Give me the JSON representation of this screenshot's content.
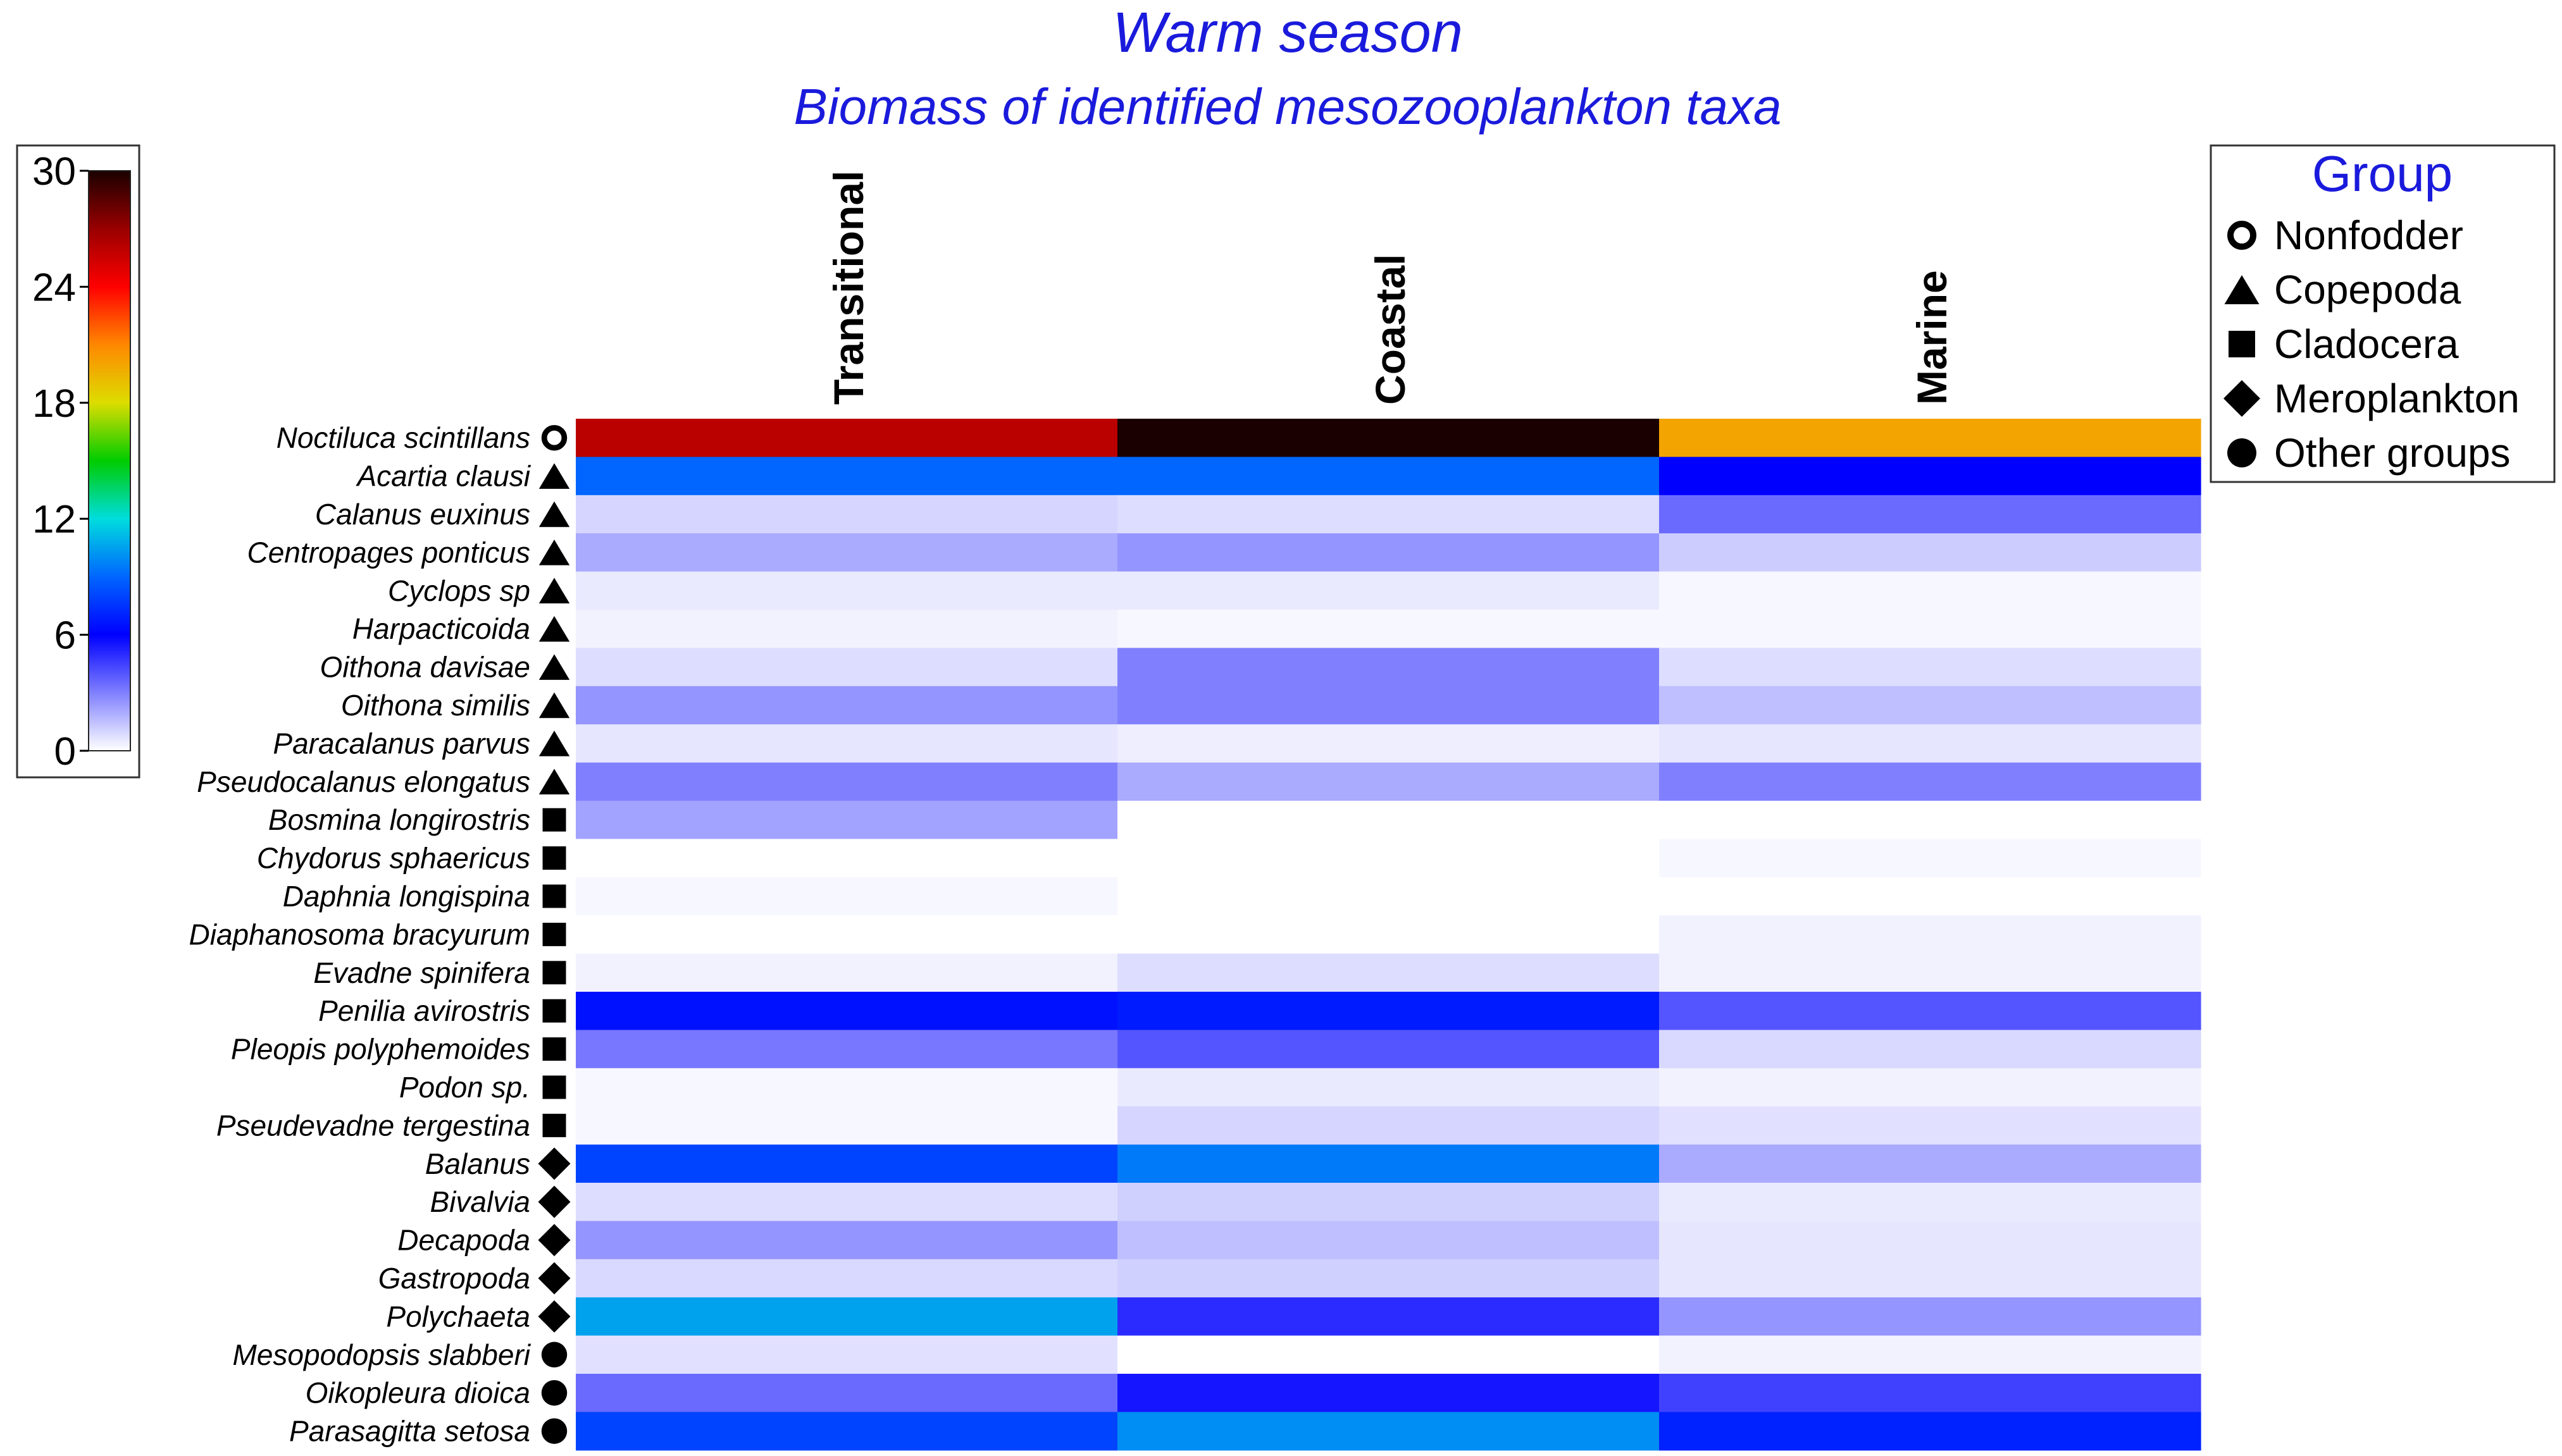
{
  "chart_data": {
    "type": "heatmap",
    "title": "Warm season",
    "subtitle": "Biomass of identified mesozooplankton taxa",
    "columns": [
      "Transitional",
      "Coastal",
      "Marine"
    ],
    "rows": [
      {
        "taxon": "Noctiluca scintillans",
        "group": "Nonfodder",
        "values": [
          26,
          30,
          20
        ]
      },
      {
        "taxon": "Acartia clausi",
        "group": "Copepoda",
        "values": [
          9,
          9,
          6
        ]
      },
      {
        "taxon": "Calanus euxinus",
        "group": "Copepoda",
        "values": [
          1,
          0.8,
          3.5
        ]
      },
      {
        "taxon": "Centropages ponticus",
        "group": "Copepoda",
        "values": [
          2,
          2.5,
          1.2
        ]
      },
      {
        "taxon": "Cyclops sp",
        "group": "Copepoda",
        "values": [
          0.5,
          0.5,
          0.2
        ]
      },
      {
        "taxon": "Harpacticoida",
        "group": "Copepoda",
        "values": [
          0.3,
          0.2,
          0.2
        ]
      },
      {
        "taxon": "Oithona davisae",
        "group": "Copepoda",
        "values": [
          0.8,
          3,
          0.8
        ]
      },
      {
        "taxon": "Oithona similis",
        "group": "Copepoda",
        "values": [
          2.5,
          3,
          1.5
        ]
      },
      {
        "taxon": "Paracalanus parvus",
        "group": "Copepoda",
        "values": [
          0.6,
          0.4,
          0.6
        ]
      },
      {
        "taxon": "Pseudocalanus elongatus",
        "group": "Copepoda",
        "values": [
          3,
          2,
          3
        ]
      },
      {
        "taxon": "Bosmina longirostris",
        "group": "Cladocera",
        "values": [
          2.2,
          0,
          0
        ]
      },
      {
        "taxon": "Chydorus sphaericus",
        "group": "Cladocera",
        "values": [
          0,
          0,
          0.2
        ]
      },
      {
        "taxon": "Daphnia longispina",
        "group": "Cladocera",
        "values": [
          0.2,
          0,
          0
        ]
      },
      {
        "taxon": "Diaphanosoma bracyurum",
        "group": "Cladocera",
        "values": [
          0,
          0,
          0.3
        ]
      },
      {
        "taxon": "Evadne spinifera",
        "group": "Cladocera",
        "values": [
          0.3,
          0.8,
          0.3
        ]
      },
      {
        "taxon": "Penilia avirostris",
        "group": "Cladocera",
        "values": [
          6.5,
          6.8,
          4
        ]
      },
      {
        "taxon": "Pleopis polyphemoides",
        "group": "Cladocera",
        "values": [
          3.2,
          4,
          0.9
        ]
      },
      {
        "taxon": "Podon sp.",
        "group": "Cladocera",
        "values": [
          0.2,
          0.5,
          0.3
        ]
      },
      {
        "taxon": "Pseudevadne tergestina",
        "group": "Cladocera",
        "values": [
          0.2,
          1,
          0.7
        ]
      },
      {
        "taxon": "Balanus",
        "group": "Meroplankton",
        "values": [
          8,
          9.5,
          2
        ]
      },
      {
        "taxon": "Bivalvia",
        "group": "Meroplankton",
        "values": [
          0.8,
          1.1,
          0.5
        ]
      },
      {
        "taxon": "Decapoda",
        "group": "Meroplankton",
        "values": [
          2.5,
          1.5,
          0.6
        ]
      },
      {
        "taxon": "Gastropoda",
        "group": "Meroplankton",
        "values": [
          0.9,
          1.1,
          0.6
        ]
      },
      {
        "taxon": "Polychaeta",
        "group": "Meroplankton",
        "values": [
          10.5,
          5,
          2.5
        ]
      },
      {
        "taxon": "Mesopodopsis slabberi",
        "group": "Other groups",
        "values": [
          0.7,
          0,
          0.3
        ]
      },
      {
        "taxon": "Oikopleura dioica",
        "group": "Other groups",
        "values": [
          3.5,
          5.5,
          4.5
        ]
      },
      {
        "taxon": "Parasagitta setosa",
        "group": "Other groups",
        "values": [
          8,
          10,
          7
        ]
      }
    ],
    "colorbar": {
      "min": 0,
      "max": 30,
      "ticks": [
        0,
        6,
        12,
        18,
        24,
        30
      ],
      "stops": [
        {
          "v": 0,
          "color": "#ffffff"
        },
        {
          "v": 6,
          "color": "#0000ff"
        },
        {
          "v": 9,
          "color": "#0066ff"
        },
        {
          "v": 12,
          "color": "#00dddd"
        },
        {
          "v": 15,
          "color": "#00cc00"
        },
        {
          "v": 18,
          "color": "#dddd00"
        },
        {
          "v": 21,
          "color": "#ff8800"
        },
        {
          "v": 24,
          "color": "#ff0000"
        },
        {
          "v": 27,
          "color": "#990000"
        },
        {
          "v": 30,
          "color": "#1a0000"
        }
      ]
    },
    "legend": {
      "title": "Group",
      "position": "top-right",
      "entries": [
        {
          "label": "Nonfodder",
          "marker": "open-circle"
        },
        {
          "label": "Copepoda",
          "marker": "triangle"
        },
        {
          "label": "Cladocera",
          "marker": "square"
        },
        {
          "label": "Meroplankton",
          "marker": "diamond"
        },
        {
          "label": "Other groups",
          "marker": "circle"
        }
      ]
    }
  },
  "colors": {
    "title": "#1a1adc",
    "text": "#000000",
    "frame": "#333333"
  }
}
